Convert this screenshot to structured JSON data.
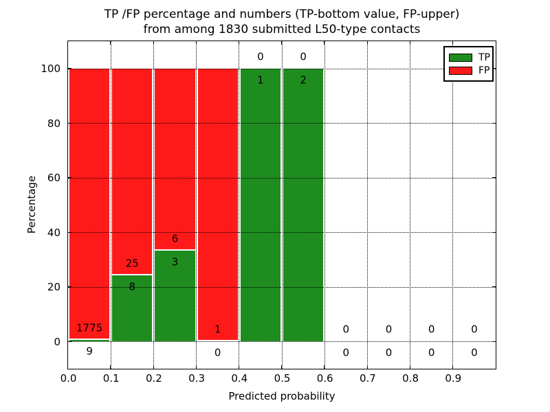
{
  "chart_data": {
    "type": "bar",
    "stacked": true,
    "title_line1": "TP /FP percentage and numbers (TP-bottom value, FP-upper)",
    "title_line2": "from among 1830 submitted L50-type contacts",
    "xlabel": "Predicted probability",
    "ylabel": "Percentage",
    "x_tick_labels": [
      "0.0",
      "0.1",
      "0.2",
      "0.3",
      "0.4",
      "0.5",
      "0.6",
      "0.7",
      "0.8",
      "0.9"
    ],
    "y_ticks": [
      0,
      20,
      40,
      60,
      80,
      100
    ],
    "xlim": [
      0.0,
      1.0
    ],
    "ylim": [
      -10,
      110
    ],
    "bin_width": 0.1,
    "grid_style": "dotted",
    "total_contacts": 1830,
    "legend": {
      "position": "upper-right",
      "entries": [
        {
          "label": "TP",
          "color": "#1e8c1e"
        },
        {
          "label": "FP",
          "color": "#ff1a1a"
        }
      ]
    },
    "bins": [
      {
        "range": "0.0-0.1",
        "tp": 9,
        "fp": 1775
      },
      {
        "range": "0.1-0.2",
        "tp": 8,
        "fp": 25
      },
      {
        "range": "0.2-0.3",
        "tp": 3,
        "fp": 6
      },
      {
        "range": "0.3-0.4",
        "tp": 0,
        "fp": 1
      },
      {
        "range": "0.4-0.5",
        "tp": 1,
        "fp": 0
      },
      {
        "range": "0.5-0.6",
        "tp": 2,
        "fp": 0
      },
      {
        "range": "0.6-0.7",
        "tp": 0,
        "fp": 0
      },
      {
        "range": "0.7-0.8",
        "tp": 0,
        "fp": 0
      },
      {
        "range": "0.8-0.9",
        "tp": 0,
        "fp": 0
      },
      {
        "range": "0.9-1.0",
        "tp": 0,
        "fp": 0
      }
    ],
    "colors": {
      "tp": "#1e8c1e",
      "fp": "#ff1a1a",
      "grid": "#000000",
      "text": "#000000",
      "background": "#ffffff"
    }
  }
}
